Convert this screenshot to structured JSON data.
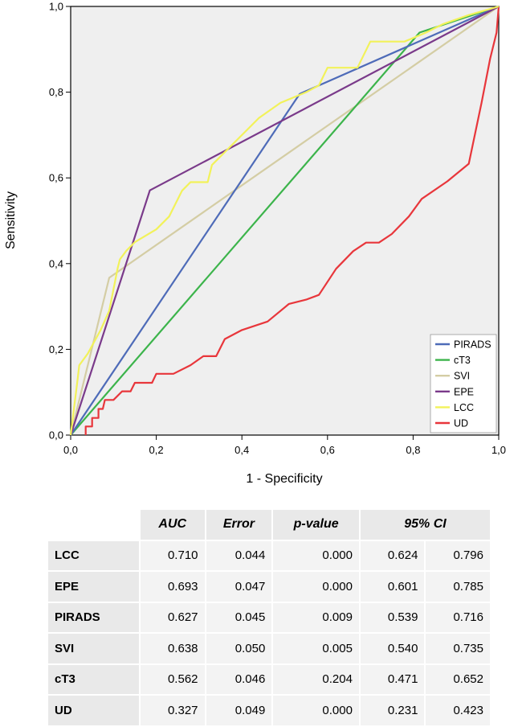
{
  "chart_data": {
    "type": "line",
    "title": "",
    "xlabel": "1 - Specificity",
    "ylabel": "Sensitivity",
    "xlim": [
      0,
      1
    ],
    "ylim": [
      0,
      1
    ],
    "x_ticks": [
      "0,0",
      "0,2",
      "0,4",
      "0,6",
      "0,8",
      "1,0"
    ],
    "y_ticks": [
      "0,0",
      "0,2",
      "0,4",
      "0,6",
      "0,8",
      "1,0"
    ],
    "grid": false,
    "legend_position": "bottom-right",
    "series": [
      {
        "name": "PIRADS",
        "color": "#4e6bb8",
        "points": [
          [
            0,
            0
          ],
          [
            0.535,
            0.796
          ],
          [
            1,
            1
          ]
        ]
      },
      {
        "name": "cT3",
        "color": "#3cb44b",
        "points": [
          [
            0,
            0
          ],
          [
            0.815,
            0.939
          ],
          [
            1,
            1
          ]
        ]
      },
      {
        "name": "SVI",
        "color": "#d4cda4",
        "points": [
          [
            0,
            0
          ],
          [
            0.09,
            0.367
          ],
          [
            1,
            1
          ]
        ]
      },
      {
        "name": "EPE",
        "color": "#7a3a8a",
        "points": [
          [
            0,
            0
          ],
          [
            0.185,
            0.571
          ],
          [
            1,
            1
          ]
        ]
      },
      {
        "name": "LCC",
        "color": "#f2f25a",
        "points": [
          [
            0,
            0
          ],
          [
            0.01,
            0.08
          ],
          [
            0.015,
            0.12
          ],
          [
            0.02,
            0.163
          ],
          [
            0.04,
            0.19
          ],
          [
            0.07,
            0.245
          ],
          [
            0.09,
            0.29
          ],
          [
            0.11,
            0.39
          ],
          [
            0.115,
            0.41
          ],
          [
            0.13,
            0.43
          ],
          [
            0.15,
            0.45
          ],
          [
            0.2,
            0.48
          ],
          [
            0.23,
            0.51
          ],
          [
            0.26,
            0.57
          ],
          [
            0.28,
            0.59
          ],
          [
            0.32,
            0.59
          ],
          [
            0.33,
            0.63
          ],
          [
            0.37,
            0.67
          ],
          [
            0.41,
            0.71
          ],
          [
            0.44,
            0.74
          ],
          [
            0.49,
            0.775
          ],
          [
            0.55,
            0.8
          ],
          [
            0.58,
            0.816
          ],
          [
            0.6,
            0.857
          ],
          [
            0.67,
            0.857
          ],
          [
            0.7,
            0.918
          ],
          [
            0.78,
            0.918
          ],
          [
            0.83,
            0.939
          ],
          [
            0.87,
            0.959
          ],
          [
            0.93,
            0.98
          ],
          [
            1,
            1
          ]
        ]
      },
      {
        "name": "UD",
        "color": "#e8363b",
        "points": [
          [
            0.035,
            0
          ],
          [
            0.035,
            0.02
          ],
          [
            0.05,
            0.02
          ],
          [
            0.05,
            0.04
          ],
          [
            0.065,
            0.04
          ],
          [
            0.065,
            0.061
          ],
          [
            0.075,
            0.061
          ],
          [
            0.08,
            0.082
          ],
          [
            0.1,
            0.082
          ],
          [
            0.12,
            0.102
          ],
          [
            0.14,
            0.102
          ],
          [
            0.15,
            0.122
          ],
          [
            0.19,
            0.122
          ],
          [
            0.2,
            0.143
          ],
          [
            0.24,
            0.143
          ],
          [
            0.28,
            0.163
          ],
          [
            0.31,
            0.184
          ],
          [
            0.34,
            0.184
          ],
          [
            0.36,
            0.224
          ],
          [
            0.4,
            0.245
          ],
          [
            0.46,
            0.265
          ],
          [
            0.51,
            0.306
          ],
          [
            0.55,
            0.316
          ],
          [
            0.58,
            0.327
          ],
          [
            0.62,
            0.388
          ],
          [
            0.66,
            0.429
          ],
          [
            0.69,
            0.449
          ],
          [
            0.72,
            0.449
          ],
          [
            0.75,
            0.469
          ],
          [
            0.79,
            0.51
          ],
          [
            0.82,
            0.551
          ],
          [
            0.88,
            0.592
          ],
          [
            0.93,
            0.633
          ],
          [
            0.96,
            0.776
          ],
          [
            0.98,
            0.878
          ],
          [
            0.995,
            0.939
          ],
          [
            1,
            1
          ]
        ]
      }
    ]
  },
  "table": {
    "headers": [
      "",
      "AUC",
      "Error",
      "p-value",
      "95% CI"
    ],
    "rows": [
      [
        "LCC",
        "0.710",
        "0.044",
        "0.000",
        "0.624",
        "0.796"
      ],
      [
        "EPE",
        "0.693",
        "0.047",
        "0.000",
        "0.601",
        "0.785"
      ],
      [
        "PIRADS",
        "0.627",
        "0.045",
        "0.009",
        "0.539",
        "0.716"
      ],
      [
        "SVI",
        "0.638",
        "0.050",
        "0.005",
        "0.540",
        "0.735"
      ],
      [
        "cT3",
        "0.562",
        "0.046",
        "0.204",
        "0.471",
        "0.652"
      ],
      [
        "UD",
        "0.327",
        "0.049",
        "0.000",
        "0.231",
        "0.423"
      ]
    ]
  },
  "colors": {
    "plot_background": "#efefef",
    "table_header": "#e9e9e9",
    "table_cell": "#f3f3f3"
  }
}
